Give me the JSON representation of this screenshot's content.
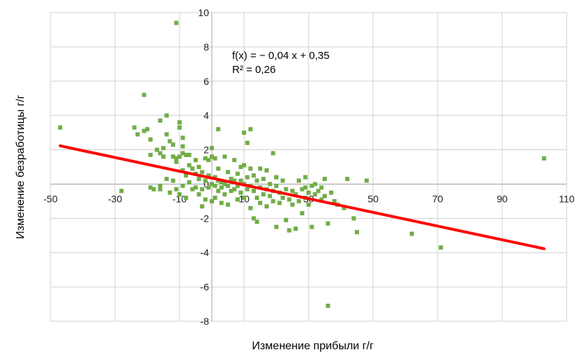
{
  "chart_data": {
    "type": "scatter",
    "title": "",
    "xlabel": "Изменение прибыли г/г",
    "ylabel": "Изменение безработицы г/г",
    "xlim": [
      -50,
      110
    ],
    "ylim": [
      -8,
      10
    ],
    "xticks": [
      -50,
      -30,
      -10,
      10,
      30,
      50,
      70,
      90,
      110
    ],
    "yticks": [
      -8,
      -6,
      -4,
      -2,
      0,
      2,
      4,
      6,
      8,
      10
    ],
    "grid": true,
    "legend": "none",
    "colors": {
      "points": "#70ad47",
      "trend": "#ff0000",
      "grid": "#d0d0d0",
      "axis": "#a0a0a0"
    },
    "trendline": {
      "slope": -0.04,
      "intercept": 0.35,
      "x_range": [
        -47,
        103
      ],
      "equation_label": "f(x) = − 0,04 x + 0,35",
      "r2_label": "R² = 0,26"
    },
    "series": [
      {
        "points": [
          [
            -47,
            3.3
          ],
          [
            -28,
            -0.4
          ],
          [
            -24,
            3.3
          ],
          [
            -23,
            2.9
          ],
          [
            -21,
            5.2
          ],
          [
            -21,
            3.1
          ],
          [
            -20,
            3.2
          ],
          [
            -19,
            2.6
          ],
          [
            -19,
            1.7
          ],
          [
            -19,
            -0.2
          ],
          [
            -18,
            -0.3
          ],
          [
            -17,
            2.0
          ],
          [
            -16,
            3.7
          ],
          [
            -16,
            1.8
          ],
          [
            -16,
            -0.1
          ],
          [
            -16,
            -0.3
          ],
          [
            -15,
            2.1
          ],
          [
            -15,
            1.6
          ],
          [
            -14,
            4.0
          ],
          [
            -14,
            2.9
          ],
          [
            -14,
            0.3
          ],
          [
            -13,
            2.5
          ],
          [
            -13,
            -0.5
          ],
          [
            -12,
            2.3
          ],
          [
            -12,
            1.6
          ],
          [
            -12,
            0.2
          ],
          [
            -11,
            9.4
          ],
          [
            -11,
            1.5
          ],
          [
            -11,
            1.3
          ],
          [
            -11,
            -0.3
          ],
          [
            -10,
            3.6
          ],
          [
            -10,
            3.3
          ],
          [
            -10,
            1.6
          ],
          [
            -10,
            -0.6
          ],
          [
            -9,
            2.7
          ],
          [
            -9,
            2.2
          ],
          [
            -9,
            1.8
          ],
          [
            -9,
            0.8
          ],
          [
            -9,
            -0.1
          ],
          [
            -8,
            1.7
          ],
          [
            -8,
            0.5
          ],
          [
            -8,
            -0.8
          ],
          [
            -7,
            1.7
          ],
          [
            -7,
            1.1
          ],
          [
            -7,
            0.1
          ],
          [
            -6,
            0.9
          ],
          [
            -6,
            -0.3
          ],
          [
            -5,
            1.4
          ],
          [
            -5,
            0.6
          ],
          [
            -5,
            -0.2
          ],
          [
            -4,
            1.0
          ],
          [
            -4,
            0.3
          ],
          [
            -4,
            -0.6
          ],
          [
            -3,
            0.7
          ],
          [
            -3,
            -0.3
          ],
          [
            -3,
            -1.3
          ],
          [
            -2,
            1.5
          ],
          [
            -2,
            0.2
          ],
          [
            -2,
            -0.9
          ],
          [
            -1,
            1.4
          ],
          [
            -1,
            0.5
          ],
          [
            -1,
            -0.2
          ],
          [
            0,
            2.1
          ],
          [
            0,
            1.6
          ],
          [
            0,
            0.0
          ],
          [
            0,
            -1.0
          ],
          [
            1,
            1.5
          ],
          [
            1,
            0.4
          ],
          [
            1,
            -0.1
          ],
          [
            1,
            -0.8
          ],
          [
            2,
            3.2
          ],
          [
            2,
            0.9
          ],
          [
            2,
            0.2
          ],
          [
            2,
            -0.4
          ],
          [
            3,
            0.1
          ],
          [
            3,
            -0.2
          ],
          [
            3,
            -1.1
          ],
          [
            4,
            1.6
          ],
          [
            4,
            0.0
          ],
          [
            4,
            -0.6
          ],
          [
            5,
            0.7
          ],
          [
            5,
            -0.1
          ],
          [
            5,
            -1.2
          ],
          [
            6,
            0.3
          ],
          [
            6,
            -0.4
          ],
          [
            7,
            1.4
          ],
          [
            7,
            0.2
          ],
          [
            7,
            -0.3
          ],
          [
            8,
            0.6
          ],
          [
            8,
            -0.1
          ],
          [
            8,
            -0.9
          ],
          [
            9,
            1.0
          ],
          [
            9,
            0.2
          ],
          [
            9,
            -0.5
          ],
          [
            10,
            3.0
          ],
          [
            10,
            1.1
          ],
          [
            10,
            0.0
          ],
          [
            10,
            -0.8
          ],
          [
            11,
            2.4
          ],
          [
            11,
            0.4
          ],
          [
            11,
            -0.3
          ],
          [
            12,
            3.2
          ],
          [
            12,
            0.9
          ],
          [
            12,
            -0.1
          ],
          [
            12,
            -1.4
          ],
          [
            13,
            0.5
          ],
          [
            13,
            -0.4
          ],
          [
            13,
            -2.0
          ],
          [
            14,
            0.2
          ],
          [
            14,
            -0.8
          ],
          [
            14,
            -2.2
          ],
          [
            15,
            0.9
          ],
          [
            15,
            -0.2
          ],
          [
            15,
            -1.1
          ],
          [
            16,
            0.3
          ],
          [
            16,
            -0.6
          ],
          [
            17,
            0.8
          ],
          [
            17,
            -0.3
          ],
          [
            17,
            -1.3
          ],
          [
            18,
            0.0
          ],
          [
            18,
            -0.7
          ],
          [
            19,
            1.8
          ],
          [
            19,
            -0.4
          ],
          [
            19,
            -1.0
          ],
          [
            20,
            0.4
          ],
          [
            20,
            -0.1
          ],
          [
            20,
            -2.5
          ],
          [
            21,
            -0.5
          ],
          [
            21,
            -1.1
          ],
          [
            22,
            0.2
          ],
          [
            22,
            -0.8
          ],
          [
            23,
            -0.3
          ],
          [
            23,
            -2.1
          ],
          [
            24,
            -0.9
          ],
          [
            24,
            -2.7
          ],
          [
            25,
            -0.4
          ],
          [
            25,
            -1.2
          ],
          [
            26,
            -0.6
          ],
          [
            26,
            -2.6
          ],
          [
            27,
            0.2
          ],
          [
            27,
            -1.0
          ],
          [
            28,
            -0.3
          ],
          [
            28,
            -1.7
          ],
          [
            29,
            0.4
          ],
          [
            29,
            -0.2
          ],
          [
            29,
            -0.8
          ],
          [
            30,
            -0.5
          ],
          [
            30,
            -1.2
          ],
          [
            31,
            -0.1
          ],
          [
            31,
            -2.5
          ],
          [
            32,
            0.0
          ],
          [
            32,
            -0.6
          ],
          [
            33,
            -0.4
          ],
          [
            34,
            -0.9
          ],
          [
            34,
            -0.2
          ],
          [
            35,
            -0.7
          ],
          [
            35,
            0.3
          ],
          [
            36,
            -2.3
          ],
          [
            36,
            -7.1
          ],
          [
            37,
            -0.5
          ],
          [
            38,
            -1.0
          ],
          [
            39,
            -1.2
          ],
          [
            41,
            -1.4
          ],
          [
            42,
            0.3
          ],
          [
            44,
            -2.0
          ],
          [
            45,
            -2.8
          ],
          [
            48,
            0.2
          ],
          [
            62,
            -2.9
          ],
          [
            71,
            -3.7
          ],
          [
            103,
            1.5
          ]
        ]
      }
    ]
  }
}
